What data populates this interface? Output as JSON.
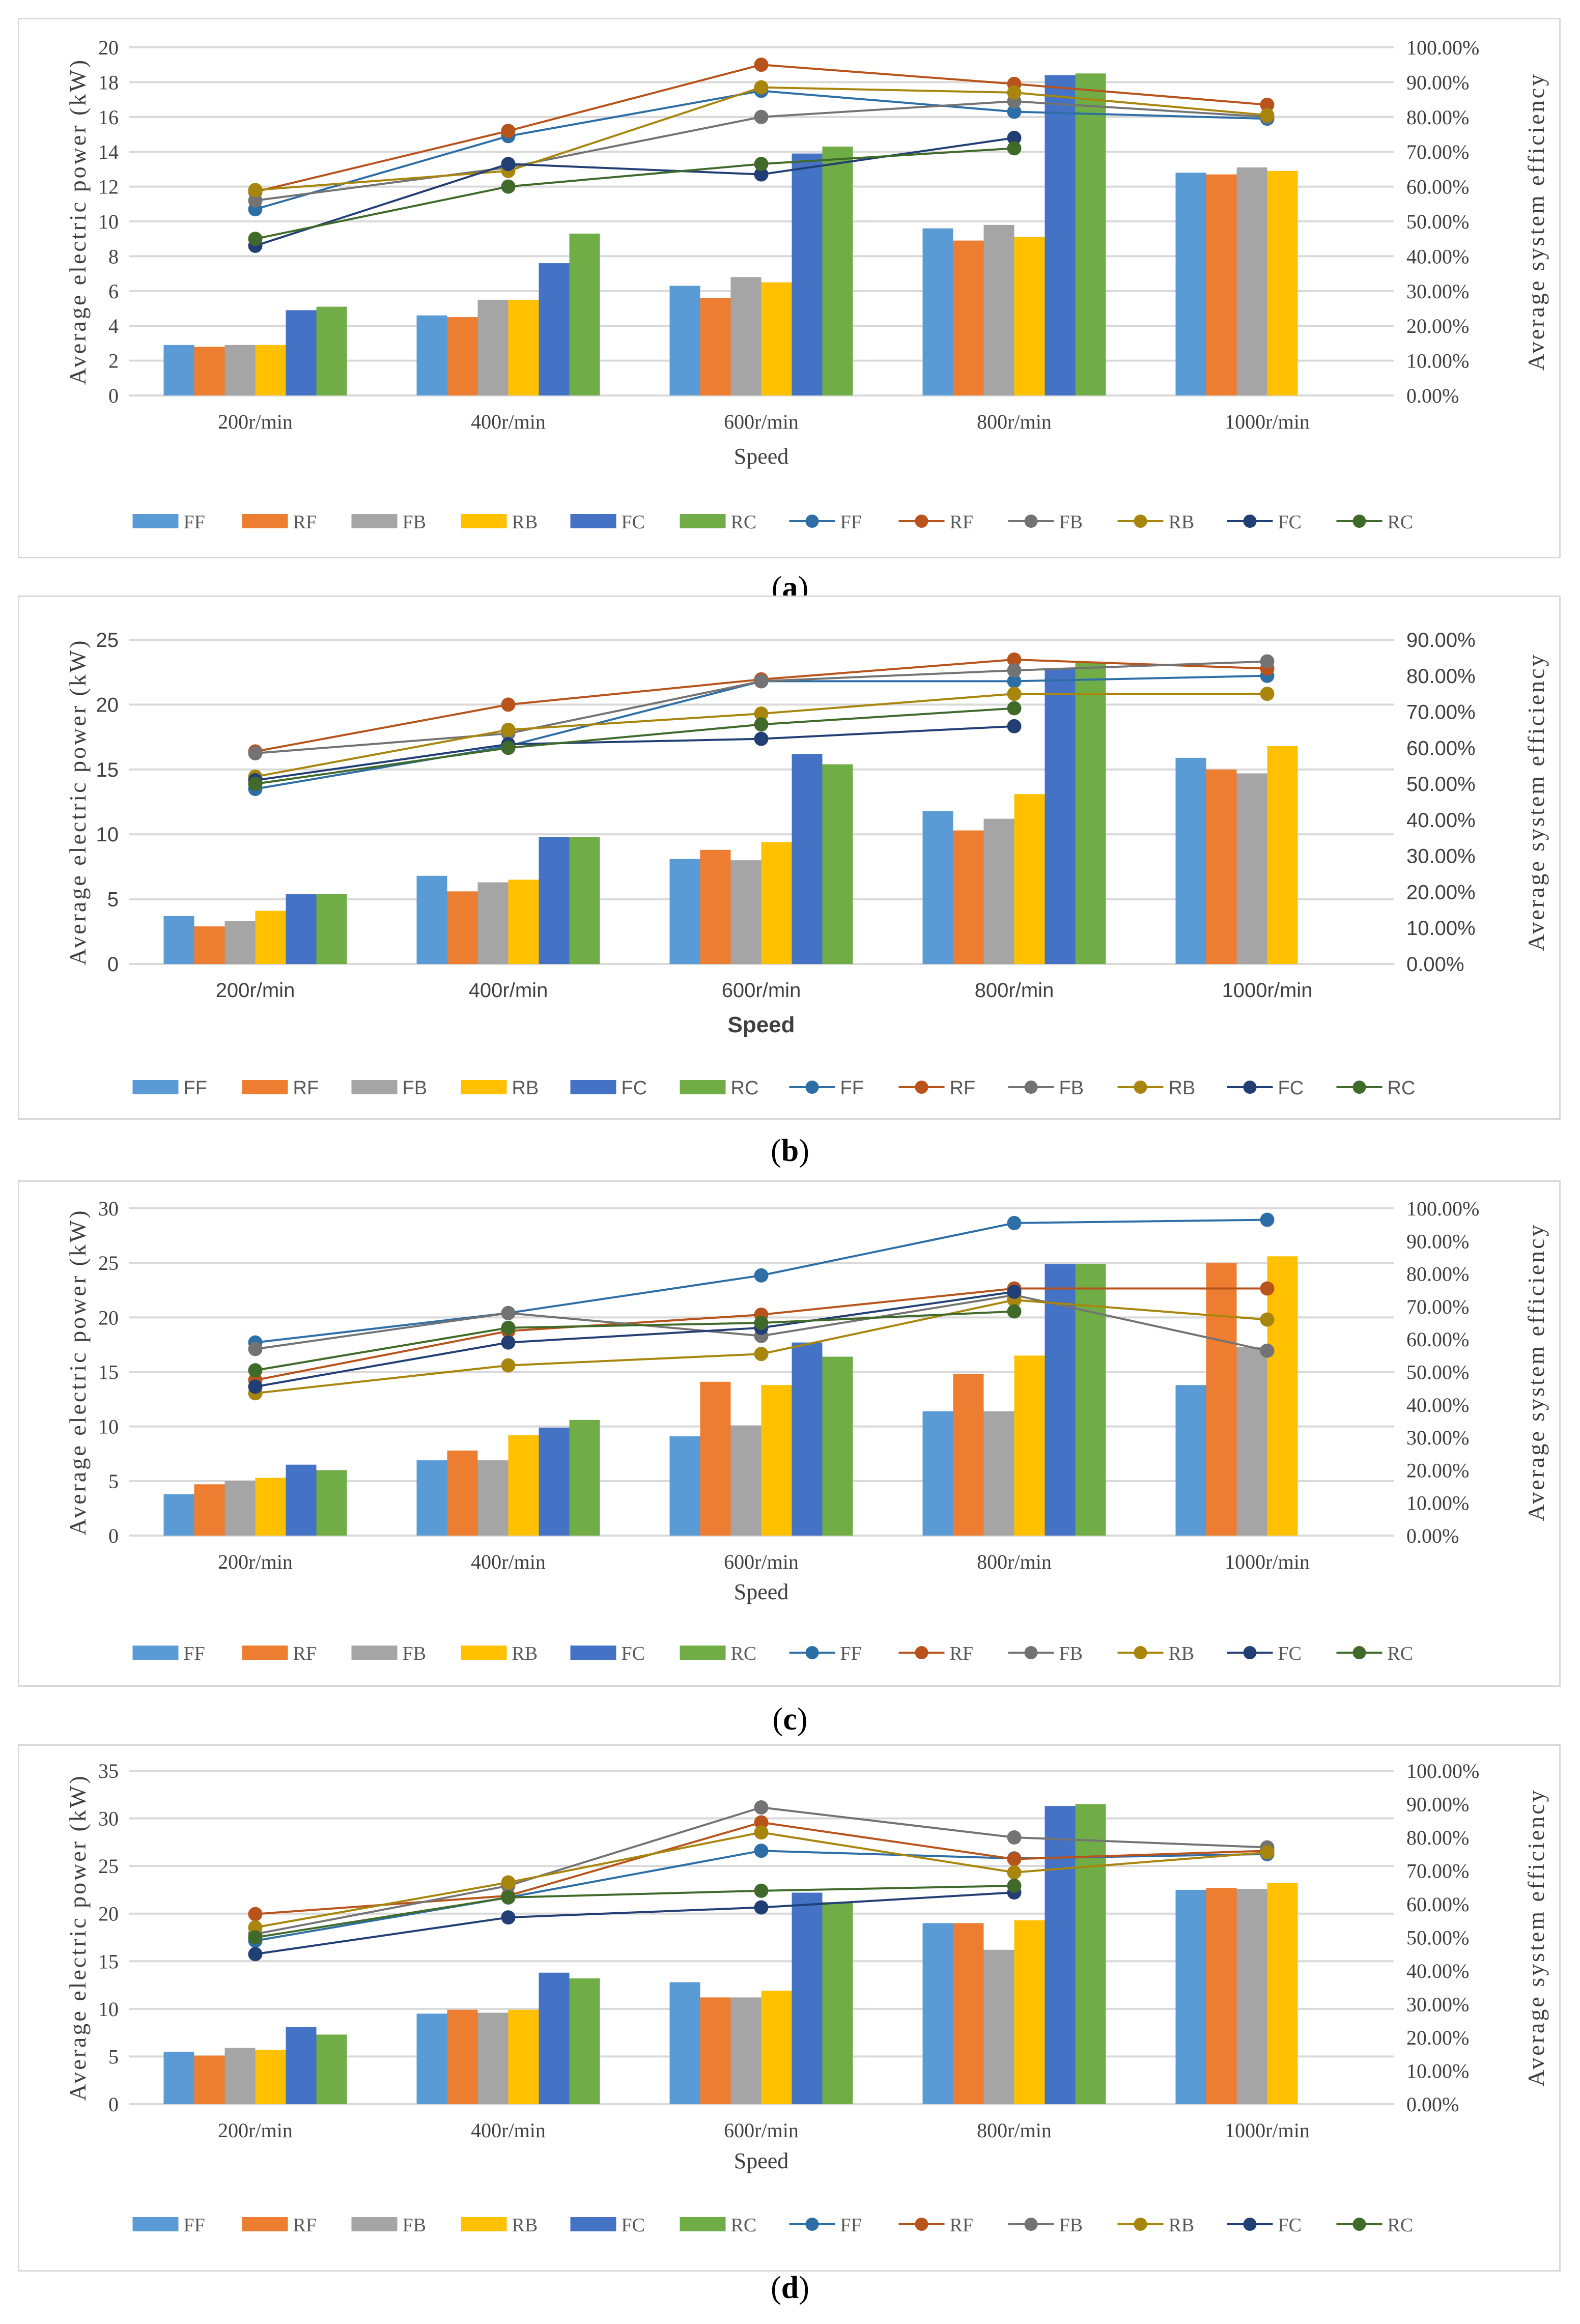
{
  "legend_labels": [
    "FF",
    "RF",
    "FB",
    "RB",
    "FC",
    "RC"
  ],
  "colors": {
    "bars": [
      "#5b9bd5",
      "#ed7d31",
      "#a5a5a5",
      "#ffc000",
      "#4472c4",
      "#70ad47"
    ],
    "lines": [
      "#2e6ea6",
      "#b8531c",
      "#737373",
      "#a8850c",
      "#223f75",
      "#3f6a2a"
    ]
  },
  "chart_data": [
    {
      "caption": "a",
      "type": "bar+line",
      "title": "",
      "xlabel": "Speed",
      "ylabel": "Average electric power (kW)",
      "y2label": "Average system efficiency",
      "categories": [
        "200r/min",
        "400r/min",
        "600r/min",
        "800r/min",
        "1000r/min"
      ],
      "ylim": [
        0,
        20
      ],
      "yticks": [
        0,
        2,
        4,
        6,
        8,
        10,
        12,
        14,
        16,
        18,
        20
      ],
      "y2lim": [
        0,
        100
      ],
      "y2ticks": [
        "0.00%",
        "10.00%",
        "20.00%",
        "30.00%",
        "40.00%",
        "50.00%",
        "60.00%",
        "70.00%",
        "80.00%",
        "90.00%",
        "100.00%"
      ],
      "bar_series": [
        {
          "name": "FF",
          "values": [
            2.9,
            4.6,
            6.3,
            9.6,
            12.8
          ]
        },
        {
          "name": "RF",
          "values": [
            2.8,
            4.5,
            5.6,
            8.9,
            12.7
          ]
        },
        {
          "name": "FB",
          "values": [
            2.9,
            5.5,
            6.8,
            9.8,
            13.1
          ]
        },
        {
          "name": "RB",
          "values": [
            2.9,
            5.5,
            6.5,
            9.1,
            12.9
          ]
        },
        {
          "name": "FC",
          "values": [
            4.9,
            7.6,
            13.9,
            18.4,
            null
          ]
        },
        {
          "name": "RC",
          "values": [
            5.1,
            9.3,
            14.3,
            18.5,
            null
          ]
        }
      ],
      "line_series": [
        {
          "name": "FF",
          "values": [
            53.5,
            74.5,
            87.5,
            81.5,
            79.5
          ]
        },
        {
          "name": "RF",
          "values": [
            58.5,
            76.0,
            95.0,
            89.5,
            83.5
          ]
        },
        {
          "name": "FB",
          "values": [
            56.0,
            65.5,
            80.0,
            84.5,
            80.0
          ]
        },
        {
          "name": "RB",
          "values": [
            59.0,
            64.5,
            88.5,
            87.0,
            80.5
          ]
        },
        {
          "name": "FC",
          "values": [
            43.0,
            66.5,
            63.5,
            74.0,
            null
          ]
        },
        {
          "name": "RC",
          "values": [
            45.0,
            60.0,
            66.5,
            71.0,
            null
          ]
        }
      ],
      "legend": "bottom"
    },
    {
      "caption": "b",
      "type": "bar+line",
      "title": "",
      "xlabel": "Speed",
      "ylabel": "Average electric power (kW)",
      "y2label": "Average system efficiency",
      "categories": [
        "200r/min",
        "400r/min",
        "600r/min",
        "800r/min",
        "1000r/min"
      ],
      "ylim": [
        0,
        25
      ],
      "yticks": [
        0,
        5,
        10,
        15,
        20,
        25
      ],
      "y2lim": [
        0,
        90
      ],
      "y2ticks": [
        "0.00%",
        "10.00%",
        "20.00%",
        "30.00%",
        "40.00%",
        "50.00%",
        "60.00%",
        "70.00%",
        "80.00%",
        "90.00%"
      ],
      "bar_series": [
        {
          "name": "FF",
          "values": [
            3.7,
            6.8,
            8.1,
            11.8,
            15.9
          ]
        },
        {
          "name": "RF",
          "values": [
            2.9,
            5.6,
            8.8,
            10.3,
            15.0
          ]
        },
        {
          "name": "FB",
          "values": [
            3.3,
            6.3,
            8.0,
            11.2,
            14.7
          ]
        },
        {
          "name": "RB",
          "values": [
            4.1,
            6.5,
            9.4,
            13.1,
            16.8
          ]
        },
        {
          "name": "FC",
          "values": [
            5.4,
            9.8,
            16.2,
            22.8,
            null
          ]
        },
        {
          "name": "RC",
          "values": [
            5.4,
            9.8,
            15.4,
            23.3,
            null
          ]
        }
      ],
      "line_series": [
        {
          "name": "FF",
          "values": [
            48.6,
            60.5,
            78.5,
            78.5,
            80.0
          ]
        },
        {
          "name": "RF",
          "values": [
            59.0,
            72.0,
            79.0,
            84.5,
            82.0
          ]
        },
        {
          "name": "FB",
          "values": [
            58.5,
            64.0,
            78.5,
            81.5,
            84.0
          ]
        },
        {
          "name": "RB",
          "values": [
            52.0,
            65.0,
            69.5,
            75.0,
            75.0
          ]
        },
        {
          "name": "FC",
          "values": [
            51.0,
            61.0,
            62.5,
            66.0,
            null
          ]
        },
        {
          "name": "RC",
          "values": [
            50.0,
            60.0,
            66.5,
            71.0,
            null
          ]
        }
      ],
      "legend": "bottom"
    },
    {
      "caption": "c",
      "type": "bar+line",
      "title": "",
      "xlabel": "Speed",
      "ylabel": "Average electric power (kW)",
      "y2label": "Average system efficiency",
      "categories": [
        "200r/min",
        "400r/min",
        "600r/min",
        "800r/min",
        "1000r/min"
      ],
      "ylim": [
        0,
        30
      ],
      "yticks": [
        0,
        5,
        10,
        15,
        20,
        25,
        30
      ],
      "y2lim": [
        0,
        100
      ],
      "y2ticks": [
        "0.00%",
        "10.00%",
        "20.00%",
        "30.00%",
        "40.00%",
        "50.00%",
        "60.00%",
        "70.00%",
        "80.00%",
        "90.00%",
        "100.00%"
      ],
      "bar_series": [
        {
          "name": "FF",
          "values": [
            3.8,
            6.9,
            9.1,
            11.4,
            13.8
          ]
        },
        {
          "name": "RF",
          "values": [
            4.7,
            7.8,
            14.1,
            14.8,
            25.0
          ]
        },
        {
          "name": "FB",
          "values": [
            5.0,
            6.9,
            10.1,
            11.4,
            17.3
          ]
        },
        {
          "name": "RB",
          "values": [
            5.3,
            9.2,
            13.8,
            16.5,
            25.6
          ]
        },
        {
          "name": "FC",
          "values": [
            6.5,
            9.9,
            17.7,
            24.9,
            null
          ]
        },
        {
          "name": "RC",
          "values": [
            6.0,
            10.6,
            16.4,
            24.9,
            null
          ]
        }
      ],
      "line_series": [
        {
          "name": "FF",
          "values": [
            59.0,
            68.0,
            79.5,
            95.5,
            96.5
          ]
        },
        {
          "name": "RF",
          "values": [
            47.5,
            62.5,
            67.5,
            75.5,
            75.5
          ]
        },
        {
          "name": "FB",
          "values": [
            57.0,
            68.0,
            61.0,
            73.5,
            56.5
          ]
        },
        {
          "name": "RB",
          "values": [
            43.5,
            52.0,
            55.5,
            72.0,
            66.0
          ]
        },
        {
          "name": "FC",
          "values": [
            45.5,
            59.0,
            63.5,
            74.5,
            null
          ]
        },
        {
          "name": "RC",
          "values": [
            50.5,
            63.5,
            65.0,
            68.5,
            null
          ]
        }
      ],
      "legend": "bottom"
    },
    {
      "caption": "d",
      "type": "bar+line",
      "title": "",
      "xlabel": "Speed",
      "ylabel": "Average electric power (kW)",
      "y2label": "Average system efficiency",
      "categories": [
        "200r/min",
        "400r/min",
        "600r/min",
        "800r/min",
        "1000r/min"
      ],
      "ylim": [
        0,
        35
      ],
      "yticks": [
        0,
        5,
        10,
        15,
        20,
        25,
        30,
        35
      ],
      "y2lim": [
        0,
        100
      ],
      "y2ticks": [
        "0.00%",
        "10.00%",
        "20.00%",
        "30.00%",
        "40.00%",
        "50.00%",
        "60.00%",
        "70.00%",
        "80.00%",
        "90.00%",
        "100.00%"
      ],
      "bar_series": [
        {
          "name": "FF",
          "values": [
            5.5,
            9.5,
            12.8,
            19.0,
            22.5
          ]
        },
        {
          "name": "RF",
          "values": [
            5.1,
            9.9,
            11.2,
            19.0,
            22.7
          ]
        },
        {
          "name": "FB",
          "values": [
            5.9,
            9.6,
            11.2,
            16.2,
            22.6
          ]
        },
        {
          "name": "RB",
          "values": [
            5.7,
            9.9,
            11.9,
            19.3,
            23.2
          ]
        },
        {
          "name": "FC",
          "values": [
            8.1,
            13.8,
            22.2,
            31.3,
            null
          ]
        },
        {
          "name": "RC",
          "values": [
            7.3,
            13.2,
            21.2,
            31.5,
            null
          ]
        }
      ],
      "line_series": [
        {
          "name": "FF",
          "values": [
            49.0,
            62.0,
            76.0,
            73.7,
            75.0
          ]
        },
        {
          "name": "RF",
          "values": [
            57.0,
            62.5,
            84.5,
            73.5,
            76.0
          ]
        },
        {
          "name": "FB",
          "values": [
            51.0,
            65.5,
            89.0,
            80.0,
            77.0
          ]
        },
        {
          "name": "RB",
          "values": [
            53.0,
            66.5,
            81.5,
            69.5,
            75.5
          ]
        },
        {
          "name": "FC",
          "values": [
            45.0,
            56.0,
            59.0,
            63.5,
            null
          ]
        },
        {
          "name": "RC",
          "values": [
            50.0,
            62.0,
            64.0,
            65.5,
            null
          ]
        }
      ],
      "legend": "bottom"
    }
  ]
}
